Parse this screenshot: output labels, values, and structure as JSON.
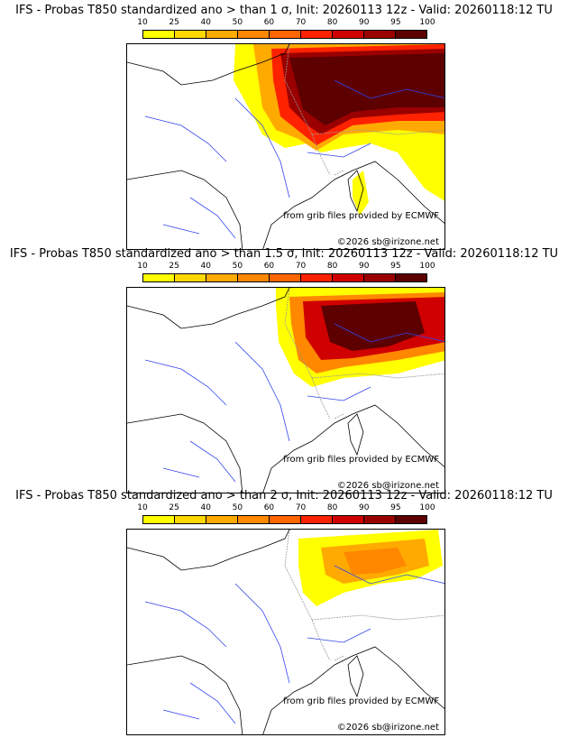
{
  "colorbar": {
    "ticks": [
      "10",
      "25",
      "40",
      "50",
      "60",
      "70",
      "80",
      "90",
      "95",
      "100"
    ],
    "colors": [
      "#ffff00",
      "#ffd700",
      "#ffaa00",
      "#ff8800",
      "#ff6600",
      "#ff2200",
      "#d00000",
      "#9a0000",
      "#5c0000"
    ]
  },
  "panels": [
    {
      "title": "IFS - Probas T850  standardized ano > than 1 σ, Init: 20260113 12z - Valid: 20260118:12 TU",
      "source": "from grib files provided by ECMWF",
      "copyright": "©2026 sb@irizone.net"
    },
    {
      "title": "IFS - Probas T850  standardized ano > than 1.5 σ, Init: 20260113 12z - Valid: 20260118:12 TU",
      "source": "from grib files provided by ECMWF",
      "copyright": "©2026 sb@irizone.net"
    },
    {
      "title": "IFS - Probas T850  standardized ano > than 2 σ, Init: 20260113 12z - Valid: 20260118:12 TU",
      "source": "from grib files provided by ECMWF",
      "copyright": "©2026 sb@irizone.net"
    }
  ]
}
